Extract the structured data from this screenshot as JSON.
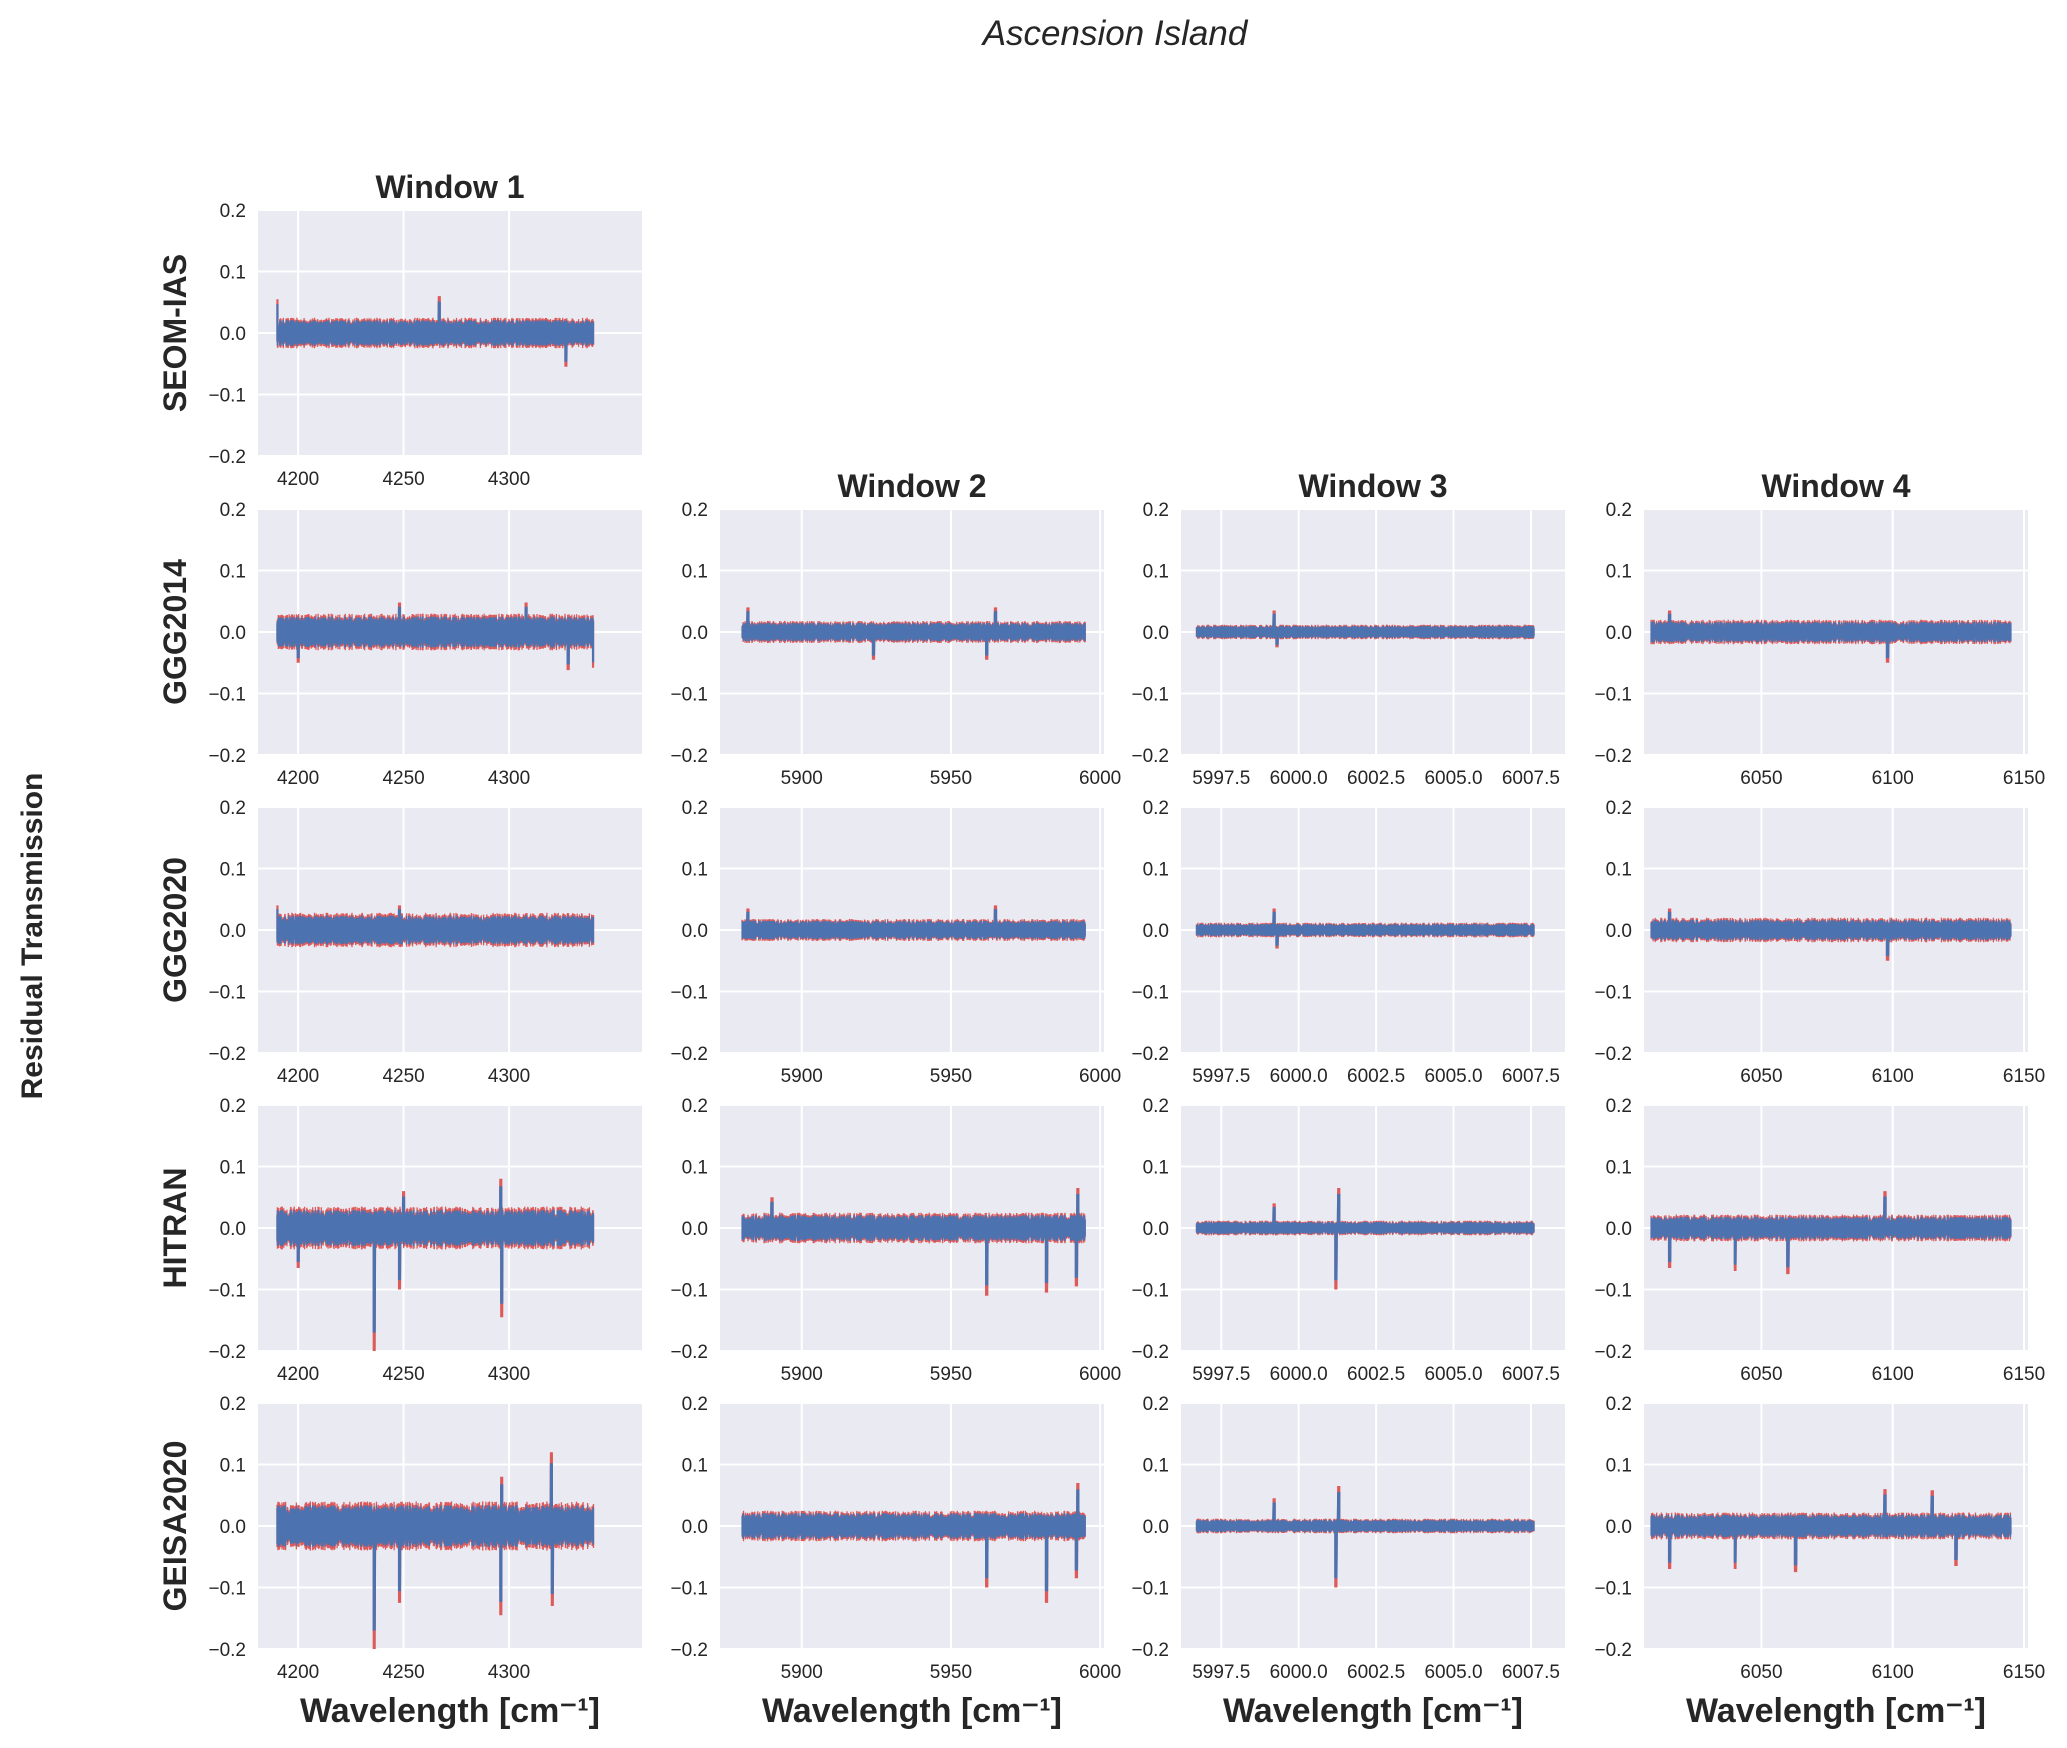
{
  "chart_data": {
    "type": "line",
    "title": "Ascension Island",
    "ylabel": "Residual Transmission",
    "xlabel": "Wavelength [cm⁻¹]",
    "ylim": [
      -0.2,
      0.2
    ],
    "yticks": [
      "0.2",
      "0.1",
      "0.0",
      "−0.1",
      "−0.2"
    ],
    "grid": true,
    "colors": {
      "residual": "#4C72B0",
      "envelope": "#DD5A5A",
      "background": "#EAEAF2"
    },
    "windows": [
      {
        "title": "Window 1",
        "xlim": [
          4181,
          4363
        ],
        "data_range": [
          4190,
          4340
        ],
        "xticks": [
          "4200",
          "4250",
          "4300"
        ],
        "xtick_values": [
          4200,
          4250,
          4300
        ]
      },
      {
        "title": "Window 2",
        "xlim": [
          5872.6,
          6001.3
        ],
        "data_range": [
          5880,
          5995
        ],
        "xticks": [
          "5900",
          "5950",
          "6000"
        ],
        "xtick_values": [
          5900,
          5950,
          6000
        ]
      },
      {
        "title": "Window 3",
        "xlim": [
          5996.2,
          6008.6
        ],
        "data_range": [
          5996.7,
          6007.6
        ],
        "xticks": [
          "5997.5",
          "6000.0",
          "6002.5",
          "6005.0",
          "6007.5"
        ],
        "xtick_values": [
          5997.5,
          6000,
          6002.5,
          6005,
          6007.5
        ]
      },
      {
        "title": "Window 4",
        "xlim": [
          6005.3,
          6151.5
        ],
        "data_range": [
          6008,
          6145
        ],
        "xticks": [
          "6050",
          "6100",
          "6150"
        ],
        "xtick_values": [
          6050,
          6100,
          6150
        ]
      }
    ],
    "rows": [
      {
        "label": "SEOM-IAS",
        "panels": [
          {
            "noise": 0.025,
            "spikes": [
              [
                4267,
                0.06
              ],
              [
                4190,
                0.055
              ],
              [
                4327,
                -0.055
              ]
            ]
          },
          null,
          null,
          null
        ]
      },
      {
        "label": "GGG2014",
        "panels": [
          {
            "noise": 0.03,
            "spikes": [
              [
                4248,
                0.048
              ],
              [
                4308,
                0.048
              ],
              [
                4328,
                -0.062
              ],
              [
                4200,
                -0.05
              ],
              [
                4340,
                -0.058
              ]
            ]
          },
          {
            "noise": 0.018,
            "spikes": [
              [
                5924,
                -0.045
              ],
              [
                5962,
                -0.045
              ],
              [
                5965,
                0.04
              ],
              [
                5882,
                0.04
              ]
            ]
          },
          {
            "noise": 0.012,
            "spikes": [
              [
                5999.2,
                0.035
              ],
              [
                5999.3,
                -0.025
              ]
            ]
          },
          {
            "noise": 0.02,
            "spikes": [
              [
                6098,
                -0.05
              ],
              [
                6015,
                0.035
              ]
            ]
          }
        ]
      },
      {
        "label": "GGG2020",
        "panels": [
          {
            "noise": 0.028,
            "spikes": [
              [
                4248,
                0.04
              ],
              [
                4190,
                0.04
              ]
            ]
          },
          {
            "noise": 0.018,
            "spikes": [
              [
                5965,
                0.04
              ],
              [
                5882,
                0.035
              ]
            ]
          },
          {
            "noise": 0.012,
            "spikes": [
              [
                5999.2,
                0.035
              ],
              [
                5999.3,
                -0.03
              ]
            ]
          },
          {
            "noise": 0.02,
            "spikes": [
              [
                6098,
                -0.05
              ],
              [
                6015,
                0.035
              ]
            ]
          }
        ]
      },
      {
        "label": "HITRAN",
        "panels": [
          {
            "noise": 0.035,
            "spikes": [
              [
                4236,
                -0.2
              ],
              [
                4296,
                0.08
              ],
              [
                4296.5,
                -0.145
              ],
              [
                4248,
                -0.1
              ],
              [
                4250,
                0.06
              ],
              [
                4200,
                -0.065
              ]
            ]
          },
          {
            "noise": 0.025,
            "spikes": [
              [
                5962,
                -0.11
              ],
              [
                5982,
                -0.105
              ],
              [
                5992,
                -0.095
              ],
              [
                5992.5,
                0.065
              ],
              [
                5890,
                0.05
              ]
            ]
          },
          {
            "noise": 0.012,
            "spikes": [
              [
                6001.2,
                -0.1
              ],
              [
                6001.3,
                0.065
              ],
              [
                5999.2,
                0.04
              ]
            ]
          },
          {
            "noise": 0.022,
            "spikes": [
              [
                6097,
                0.06
              ],
              [
                6040,
                -0.07
              ],
              [
                6015,
                -0.065
              ],
              [
                6060,
                -0.075
              ]
            ]
          }
        ]
      },
      {
        "label": "GEISA2020",
        "panels": [
          {
            "noise": 0.04,
            "spikes": [
              [
                4236,
                -0.2
              ],
              [
                4320,
                0.12
              ],
              [
                4320.5,
                -0.13
              ],
              [
                4296,
                -0.145
              ],
              [
                4296.5,
                0.08
              ],
              [
                4248,
                -0.125
              ]
            ]
          },
          {
            "noise": 0.025,
            "spikes": [
              [
                5962,
                -0.1
              ],
              [
                5982,
                -0.125
              ],
              [
                5992,
                -0.085
              ],
              [
                5992.5,
                0.07
              ]
            ]
          },
          {
            "noise": 0.012,
            "spikes": [
              [
                6001.2,
                -0.1
              ],
              [
                6001.3,
                0.065
              ],
              [
                5999.2,
                0.045
              ]
            ]
          },
          {
            "noise": 0.022,
            "spikes": [
              [
                6097,
                0.06
              ],
              [
                6115,
                0.058
              ],
              [
                6040,
                -0.07
              ],
              [
                6063,
                -0.075
              ],
              [
                6015,
                -0.07
              ],
              [
                6124,
                -0.065
              ]
            ]
          }
        ]
      }
    ]
  }
}
